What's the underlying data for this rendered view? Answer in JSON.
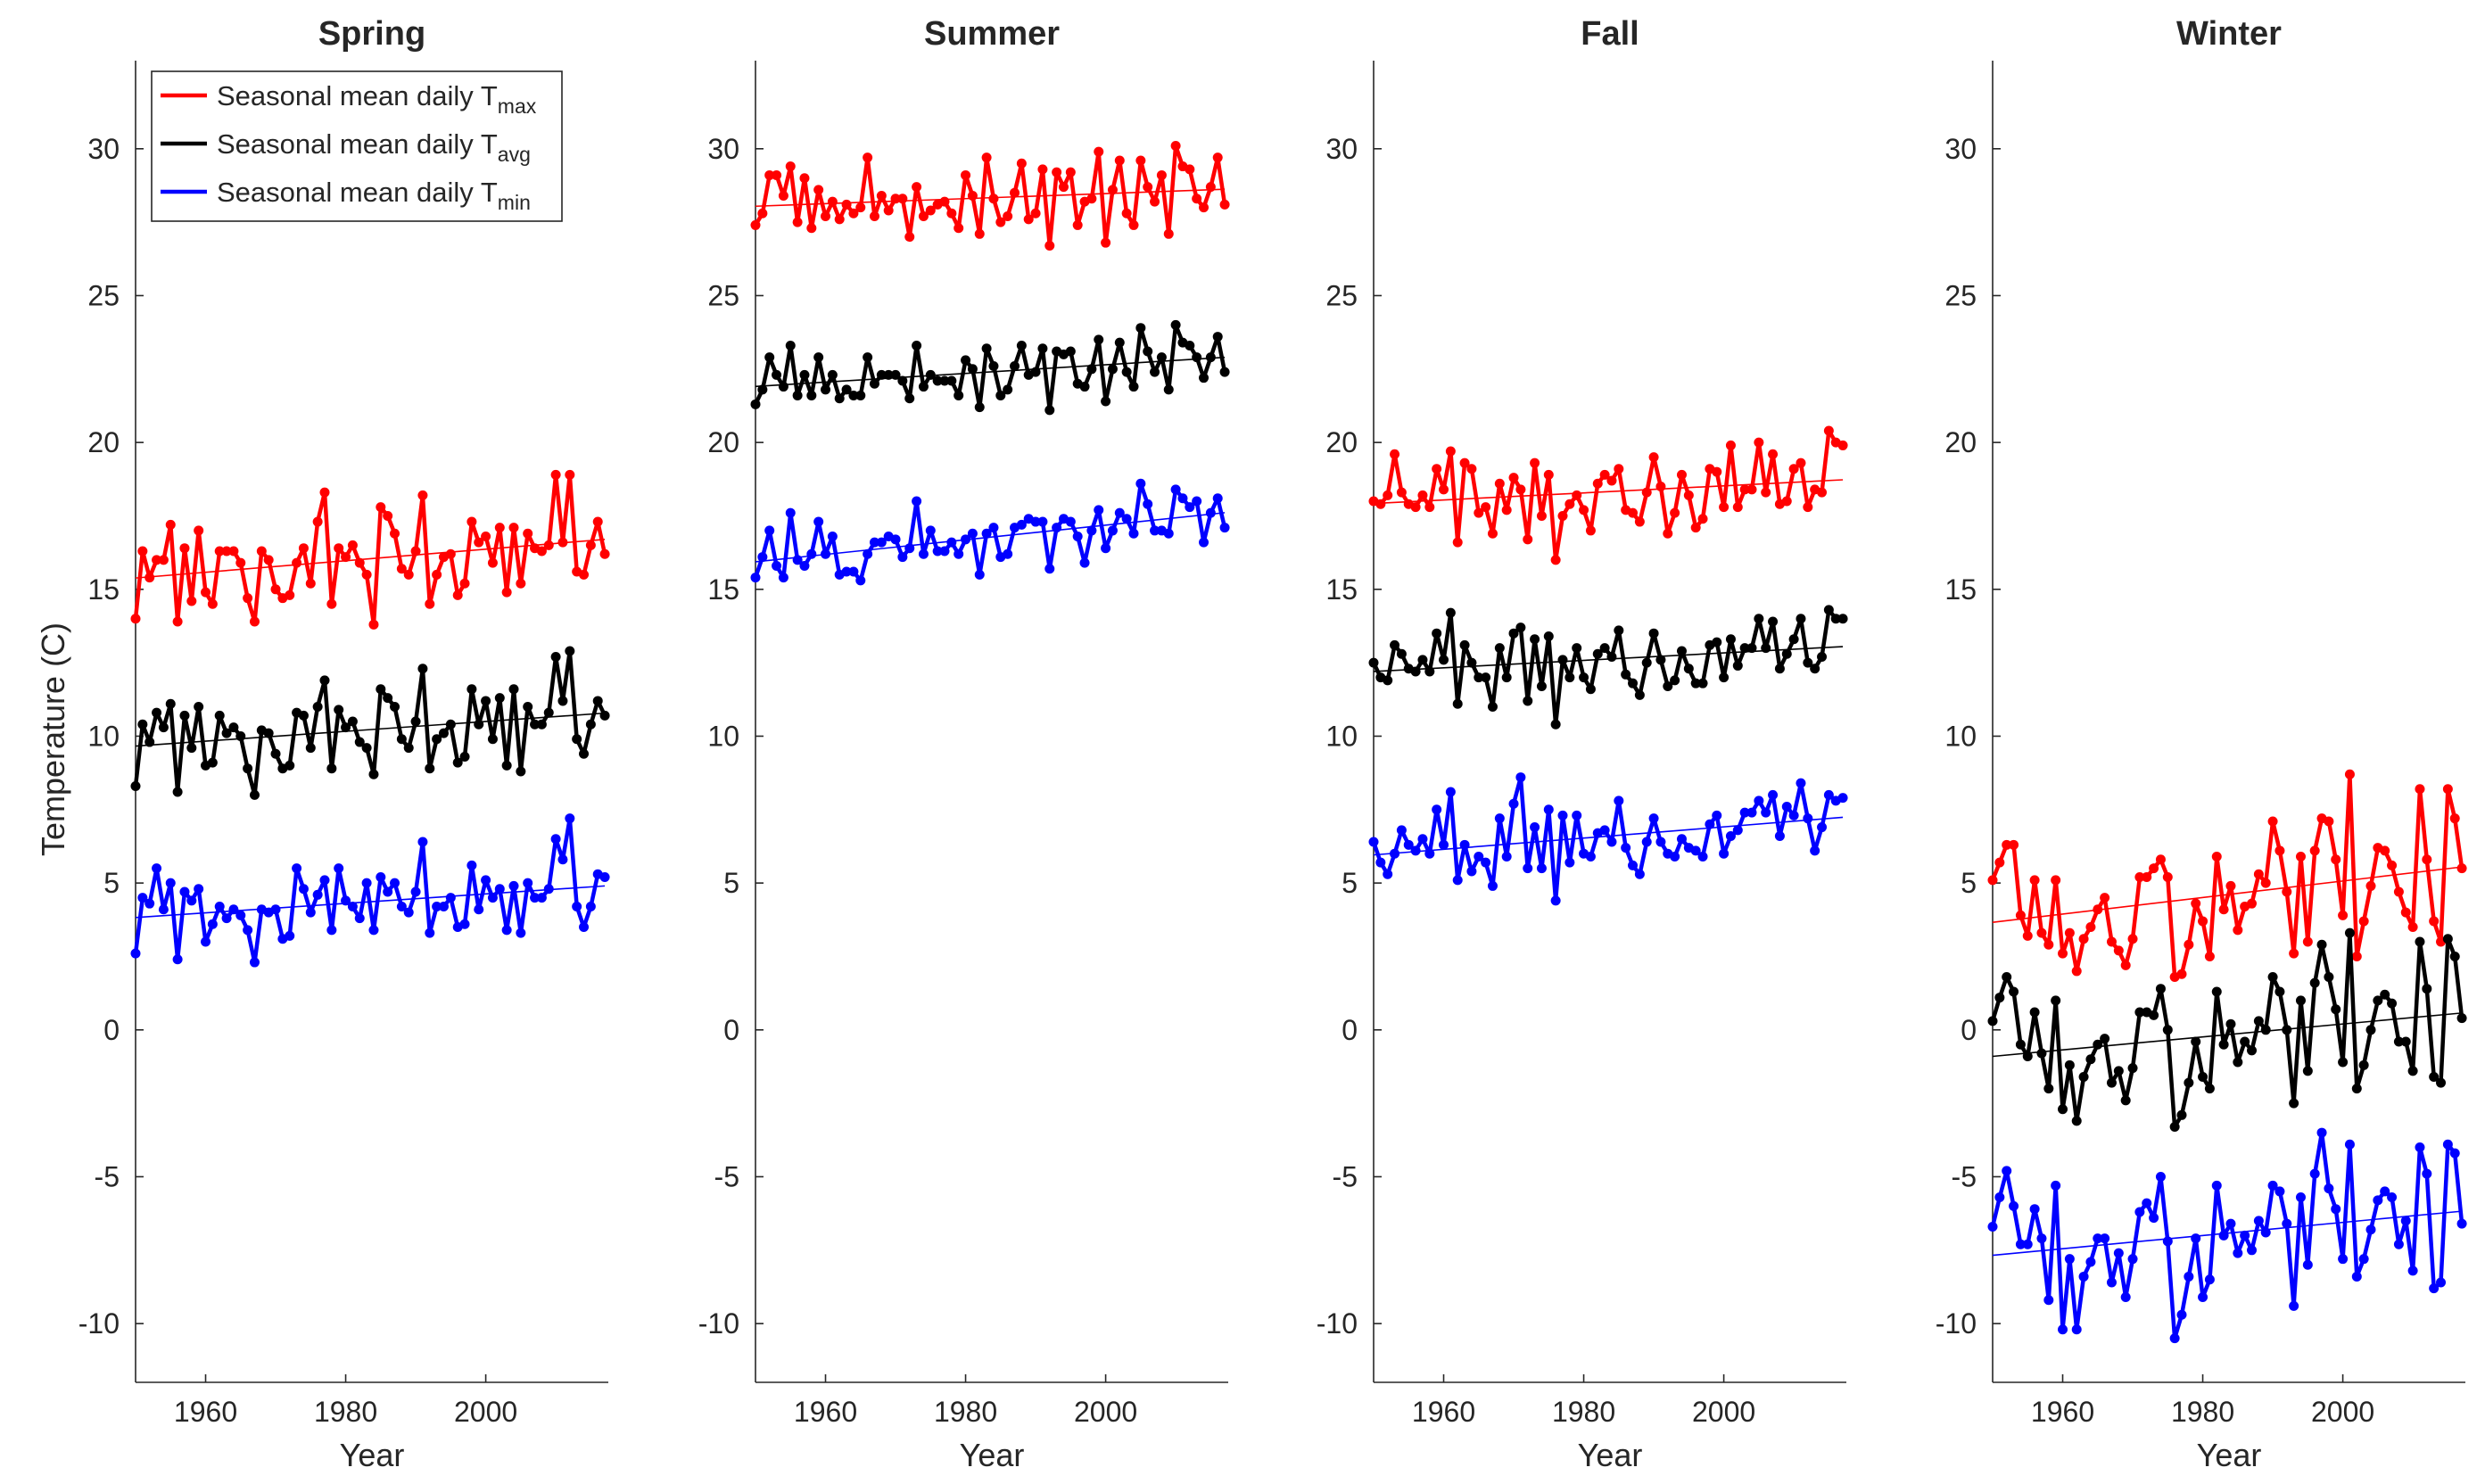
{
  "legend": {
    "placement": "top-left of first panel",
    "entries": [
      {
        "label": "Seasonal mean daily T",
        "subscript": "max",
        "color": "#ff0000"
      },
      {
        "label": "Seasonal mean daily T",
        "subscript": "avg",
        "color": "#000000"
      },
      {
        "label": "Seasonal mean daily T",
        "subscript": "min",
        "color": "#0000ff"
      }
    ]
  },
  "chart_data": [
    {
      "type": "line",
      "title": "Spring",
      "xlabel": "Year",
      "ylabel": "Temperature (C)",
      "xlim": [
        1950,
        2017.5
      ],
      "ylim": [
        -12,
        33
      ],
      "xticks": [
        1960,
        1980,
        2000
      ],
      "yticks": [
        -10,
        -5,
        0,
        5,
        10,
        15,
        20,
        25,
        30
      ],
      "grid": false,
      "linear_trend_lines": true,
      "x_first_year": 1950,
      "series": [
        {
          "key": "max",
          "color": "#ff0000",
          "values": [
            14.0,
            16.3,
            15.4,
            16.0,
            16.0,
            17.2,
            13.9,
            16.4,
            14.6,
            17.0,
            14.9,
            14.5,
            16.3,
            16.3,
            16.3,
            15.9,
            14.7,
            13.9,
            16.3,
            16.0,
            15.0,
            14.7,
            14.8,
            15.9,
            16.4,
            15.2,
            17.3,
            18.3,
            14.5,
            16.4,
            16.1,
            16.5,
            15.9,
            15.5,
            13.8,
            17.8,
            17.5,
            16.9,
            15.7,
            15.5,
            16.3,
            18.2,
            14.5,
            15.5,
            16.1,
            16.2,
            14.8,
            15.2,
            17.3,
            16.6,
            16.8,
            15.9,
            17.1,
            14.9,
            17.1,
            15.2,
            16.9,
            16.4,
            16.3,
            16.5,
            18.9,
            16.6,
            18.9,
            15.6,
            15.5,
            16.5,
            17.3,
            16.2
          ]
        },
        {
          "key": "avg",
          "color": "#000000",
          "values": [
            8.3,
            10.4,
            9.8,
            10.8,
            10.3,
            11.1,
            8.1,
            10.7,
            9.6,
            11.0,
            9.0,
            9.1,
            10.7,
            10.1,
            10.3,
            10.0,
            8.9,
            8.0,
            10.2,
            10.1,
            9.4,
            8.9,
            9.0,
            10.8,
            10.7,
            9.6,
            11.0,
            11.9,
            8.9,
            10.9,
            10.3,
            10.5,
            9.8,
            9.6,
            8.7,
            11.6,
            11.3,
            11.0,
            9.9,
            9.6,
            10.5,
            12.3,
            8.9,
            9.9,
            10.1,
            10.4,
            9.1,
            9.3,
            11.6,
            10.4,
            11.2,
            9.9,
            11.3,
            9.0,
            11.6,
            8.8,
            11.0,
            10.4,
            10.4,
            10.8,
            12.7,
            11.2,
            12.9,
            9.9,
            9.4,
            10.4,
            11.2,
            10.7
          ]
        },
        {
          "key": "min",
          "color": "#0000ff",
          "values": [
            2.6,
            4.5,
            4.3,
            5.5,
            4.1,
            5.0,
            2.4,
            4.7,
            4.4,
            4.8,
            3.0,
            3.6,
            4.2,
            3.8,
            4.1,
            3.9,
            3.4,
            2.3,
            4.1,
            4.0,
            4.1,
            3.1,
            3.2,
            5.5,
            4.8,
            4.0,
            4.6,
            5.1,
            3.4,
            5.5,
            4.4,
            4.2,
            3.8,
            5.0,
            3.4,
            5.2,
            4.7,
            5.0,
            4.2,
            4.0,
            4.7,
            6.4,
            3.3,
            4.2,
            4.2,
            4.5,
            3.5,
            3.6,
            5.6,
            4.1,
            5.1,
            4.5,
            4.8,
            3.4,
            4.9,
            3.3,
            5.0,
            4.5,
            4.5,
            4.8,
            6.5,
            5.8,
            7.2,
            4.2,
            3.5,
            4.2,
            5.3,
            5.2
          ]
        }
      ]
    },
    {
      "type": "line",
      "title": "Summer",
      "xlabel": "Year",
      "ylabel": "",
      "xlim": [
        1950,
        2017.5
      ],
      "ylim": [
        -12,
        33
      ],
      "xticks": [
        1960,
        1980,
        2000
      ],
      "yticks": [
        -10,
        -5,
        0,
        5,
        10,
        15,
        20,
        25,
        30
      ],
      "grid": false,
      "linear_trend_lines": true,
      "x_first_year": 1950,
      "series": [
        {
          "key": "max",
          "color": "#ff0000",
          "values": [
            27.4,
            27.8,
            29.1,
            29.1,
            28.4,
            29.4,
            27.5,
            29.0,
            27.3,
            28.6,
            27.7,
            28.2,
            27.6,
            28.1,
            27.8,
            28.0,
            29.7,
            27.7,
            28.4,
            27.9,
            28.3,
            28.3,
            27.0,
            28.7,
            27.7,
            27.9,
            28.1,
            28.2,
            27.8,
            27.3,
            29.1,
            28.4,
            27.1,
            29.7,
            28.3,
            27.5,
            27.7,
            28.5,
            29.5,
            27.6,
            27.8,
            29.3,
            26.7,
            29.2,
            28.7,
            29.2,
            27.4,
            28.2,
            28.3,
            29.9,
            26.8,
            28.6,
            29.6,
            27.8,
            27.4,
            29.6,
            28.7,
            28.2,
            29.1,
            27.1,
            30.1,
            29.4,
            29.3,
            28.3,
            28.0,
            28.7,
            29.7,
            28.1
          ]
        },
        {
          "key": "avg",
          "color": "#000000",
          "values": [
            21.3,
            21.8,
            22.9,
            22.3,
            21.9,
            23.3,
            21.6,
            22.3,
            21.6,
            22.9,
            21.8,
            22.3,
            21.5,
            21.8,
            21.6,
            21.6,
            22.9,
            22.0,
            22.3,
            22.3,
            22.3,
            22.1,
            21.5,
            23.3,
            21.9,
            22.3,
            22.1,
            22.1,
            22.1,
            21.6,
            22.8,
            22.5,
            21.2,
            23.2,
            22.6,
            21.6,
            21.8,
            22.6,
            23.3,
            22.3,
            22.4,
            23.2,
            21.1,
            23.1,
            23.0,
            23.1,
            22.0,
            21.9,
            22.5,
            23.5,
            21.4,
            22.5,
            23.4,
            22.4,
            21.9,
            23.9,
            23.1,
            22.4,
            22.9,
            21.8,
            24.0,
            23.4,
            23.3,
            22.9,
            22.2,
            22.9,
            23.6,
            22.4
          ]
        },
        {
          "key": "min",
          "color": "#0000ff",
          "values": [
            15.4,
            16.1,
            17.0,
            15.8,
            15.4,
            17.6,
            16.0,
            15.8,
            16.2,
            17.3,
            16.2,
            16.8,
            15.5,
            15.6,
            15.6,
            15.3,
            16.2,
            16.6,
            16.6,
            16.8,
            16.7,
            16.1,
            16.4,
            18.0,
            16.2,
            17.0,
            16.3,
            16.3,
            16.6,
            16.2,
            16.7,
            16.9,
            15.5,
            16.9,
            17.1,
            16.1,
            16.2,
            17.1,
            17.2,
            17.4,
            17.3,
            17.3,
            15.7,
            17.1,
            17.4,
            17.3,
            16.8,
            15.9,
            17.0,
            17.7,
            16.4,
            17.0,
            17.6,
            17.4,
            16.9,
            18.6,
            17.9,
            17.0,
            17.0,
            16.9,
            18.4,
            18.1,
            17.8,
            18.0,
            16.6,
            17.6,
            18.1,
            17.1
          ]
        }
      ]
    },
    {
      "type": "line",
      "title": "Fall",
      "xlabel": "Year",
      "ylabel": "",
      "xlim": [
        1950,
        2017.5
      ],
      "ylim": [
        -12,
        33
      ],
      "xticks": [
        1960,
        1980,
        2000
      ],
      "yticks": [
        -10,
        -5,
        0,
        5,
        10,
        15,
        20,
        25,
        30
      ],
      "grid": false,
      "linear_trend_lines": true,
      "x_first_year": 1950,
      "series": [
        {
          "key": "max",
          "color": "#ff0000",
          "values": [
            18.0,
            17.9,
            18.2,
            19.6,
            18.3,
            17.9,
            17.8,
            18.2,
            17.8,
            19.1,
            18.4,
            19.7,
            16.6,
            19.3,
            19.1,
            17.6,
            17.8,
            16.9,
            18.6,
            17.7,
            18.8,
            18.4,
            16.7,
            19.3,
            17.5,
            18.9,
            16.0,
            17.5,
            17.9,
            18.2,
            17.7,
            17.0,
            18.6,
            18.9,
            18.7,
            19.1,
            17.7,
            17.6,
            17.3,
            18.3,
            19.5,
            18.5,
            16.9,
            17.6,
            18.9,
            18.2,
            17.1,
            17.4,
            19.1,
            19.0,
            17.8,
            19.9,
            17.8,
            18.4,
            18.4,
            20.0,
            18.3,
            19.6,
            17.9,
            18.0,
            19.1,
            19.3,
            17.8,
            18.4,
            18.3,
            20.4,
            20.0,
            19.9
          ]
        },
        {
          "key": "avg",
          "color": "#000000",
          "values": [
            12.5,
            12.0,
            11.9,
            13.1,
            12.8,
            12.3,
            12.2,
            12.6,
            12.2,
            13.5,
            12.6,
            14.2,
            11.1,
            13.1,
            12.5,
            12.0,
            12.0,
            11.0,
            13.0,
            12.0,
            13.5,
            13.7,
            11.2,
            13.3,
            11.7,
            13.4,
            10.4,
            12.6,
            12.0,
            13.0,
            12.0,
            11.6,
            12.8,
            13.0,
            12.7,
            13.6,
            12.1,
            11.8,
            11.4,
            12.5,
            13.5,
            12.6,
            11.7,
            11.9,
            12.9,
            12.3,
            11.8,
            11.8,
            13.1,
            13.2,
            12.0,
            13.3,
            12.4,
            13.0,
            13.0,
            14.0,
            13.0,
            13.9,
            12.3,
            12.8,
            13.3,
            14.0,
            12.5,
            12.3,
            12.7,
            14.3,
            14.0,
            14.0
          ]
        },
        {
          "key": "min",
          "color": "#0000ff",
          "values": [
            6.4,
            5.7,
            5.3,
            6.0,
            6.8,
            6.3,
            6.1,
            6.5,
            6.0,
            7.5,
            6.3,
            8.1,
            5.1,
            6.3,
            5.4,
            5.9,
            5.7,
            4.9,
            7.2,
            5.9,
            7.7,
            8.6,
            5.5,
            6.9,
            5.5,
            7.5,
            4.4,
            7.3,
            5.7,
            7.3,
            6.0,
            5.9,
            6.7,
            6.8,
            6.4,
            7.8,
            6.2,
            5.6,
            5.3,
            6.4,
            7.2,
            6.4,
            6.0,
            5.9,
            6.5,
            6.2,
            6.1,
            5.9,
            7.0,
            7.3,
            6.0,
            6.6,
            6.8,
            7.4,
            7.4,
            7.8,
            7.4,
            8.0,
            6.6,
            7.6,
            7.3,
            8.4,
            7.2,
            6.1,
            6.9,
            8.0,
            7.8,
            7.9
          ]
        }
      ]
    },
    {
      "type": "line",
      "title": "Winter",
      "xlabel": "Year",
      "ylabel": "",
      "xlim": [
        1950,
        2017.5
      ],
      "ylim": [
        -12,
        33
      ],
      "xticks": [
        1960,
        1980,
        2000
      ],
      "yticks": [
        -10,
        -5,
        0,
        5,
        10,
        15,
        20,
        25,
        30
      ],
      "grid": false,
      "linear_trend_lines": true,
      "x_first_year": 1950,
      "series": [
        {
          "key": "max",
          "color": "#ff0000",
          "values": [
            5.1,
            5.7,
            6.3,
            6.3,
            3.9,
            3.2,
            5.1,
            3.3,
            2.9,
            5.1,
            2.6,
            3.3,
            2.0,
            3.1,
            3.5,
            4.1,
            4.5,
            3.0,
            2.7,
            2.2,
            3.1,
            5.2,
            5.2,
            5.5,
            5.8,
            5.2,
            1.8,
            1.9,
            2.9,
            4.3,
            3.7,
            2.5,
            5.9,
            4.1,
            4.9,
            3.4,
            4.2,
            4.3,
            5.3,
            5.0,
            7.1,
            6.1,
            4.7,
            2.6,
            5.9,
            3.0,
            6.1,
            7.2,
            7.1,
            5.8,
            3.9,
            8.7,
            2.5,
            3.7,
            4.9,
            6.2,
            6.1,
            5.6,
            4.7,
            4.0,
            3.5,
            8.2,
            5.8,
            3.7,
            3.0,
            8.2,
            7.2,
            5.5
          ]
        },
        {
          "key": "avg",
          "color": "#000000",
          "values": [
            0.3,
            1.1,
            1.8,
            1.3,
            -0.5,
            -0.9,
            0.6,
            -0.8,
            -2.0,
            1.0,
            -2.7,
            -1.2,
            -3.1,
            -1.6,
            -1.0,
            -0.5,
            -0.3,
            -1.8,
            -1.4,
            -2.4,
            -1.3,
            0.6,
            0.6,
            0.5,
            1.4,
            0.0,
            -3.3,
            -2.9,
            -1.8,
            -0.4,
            -1.6,
            -2.0,
            1.3,
            -0.5,
            0.2,
            -1.1,
            -0.4,
            -0.7,
            0.3,
            0.0,
            1.8,
            1.3,
            0.0,
            -2.5,
            1.0,
            -1.4,
            1.6,
            2.9,
            1.8,
            0.7,
            -1.1,
            3.3,
            -2.0,
            -1.2,
            0.0,
            1.0,
            1.2,
            0.9,
            -0.4,
            -0.4,
            -1.4,
            3.0,
            1.4,
            -1.6,
            -1.8,
            3.1,
            2.5,
            0.4
          ]
        },
        {
          "key": "min",
          "color": "#0000ff",
          "values": [
            -6.7,
            -5.7,
            -4.8,
            -6.0,
            -7.3,
            -7.3,
            -6.1,
            -7.1,
            -9.2,
            -5.3,
            -10.2,
            -7.8,
            -10.2,
            -8.4,
            -7.9,
            -7.1,
            -7.1,
            -8.6,
            -7.6,
            -9.1,
            -7.8,
            -6.2,
            -5.9,
            -6.4,
            -5.0,
            -7.2,
            -10.5,
            -9.7,
            -8.4,
            -7.1,
            -9.1,
            -8.5,
            -5.3,
            -7.0,
            -6.6,
            -7.6,
            -7.0,
            -7.5,
            -6.5,
            -6.9,
            -5.3,
            -5.5,
            -6.6,
            -9.4,
            -5.7,
            -8.0,
            -4.9,
            -3.5,
            -5.4,
            -6.1,
            -7.8,
            -3.9,
            -8.4,
            -7.8,
            -6.8,
            -5.8,
            -5.5,
            -5.7,
            -7.3,
            -6.5,
            -8.2,
            -4.0,
            -4.9,
            -8.8,
            -8.6,
            -3.9,
            -4.2,
            -6.6
          ]
        }
      ]
    }
  ]
}
